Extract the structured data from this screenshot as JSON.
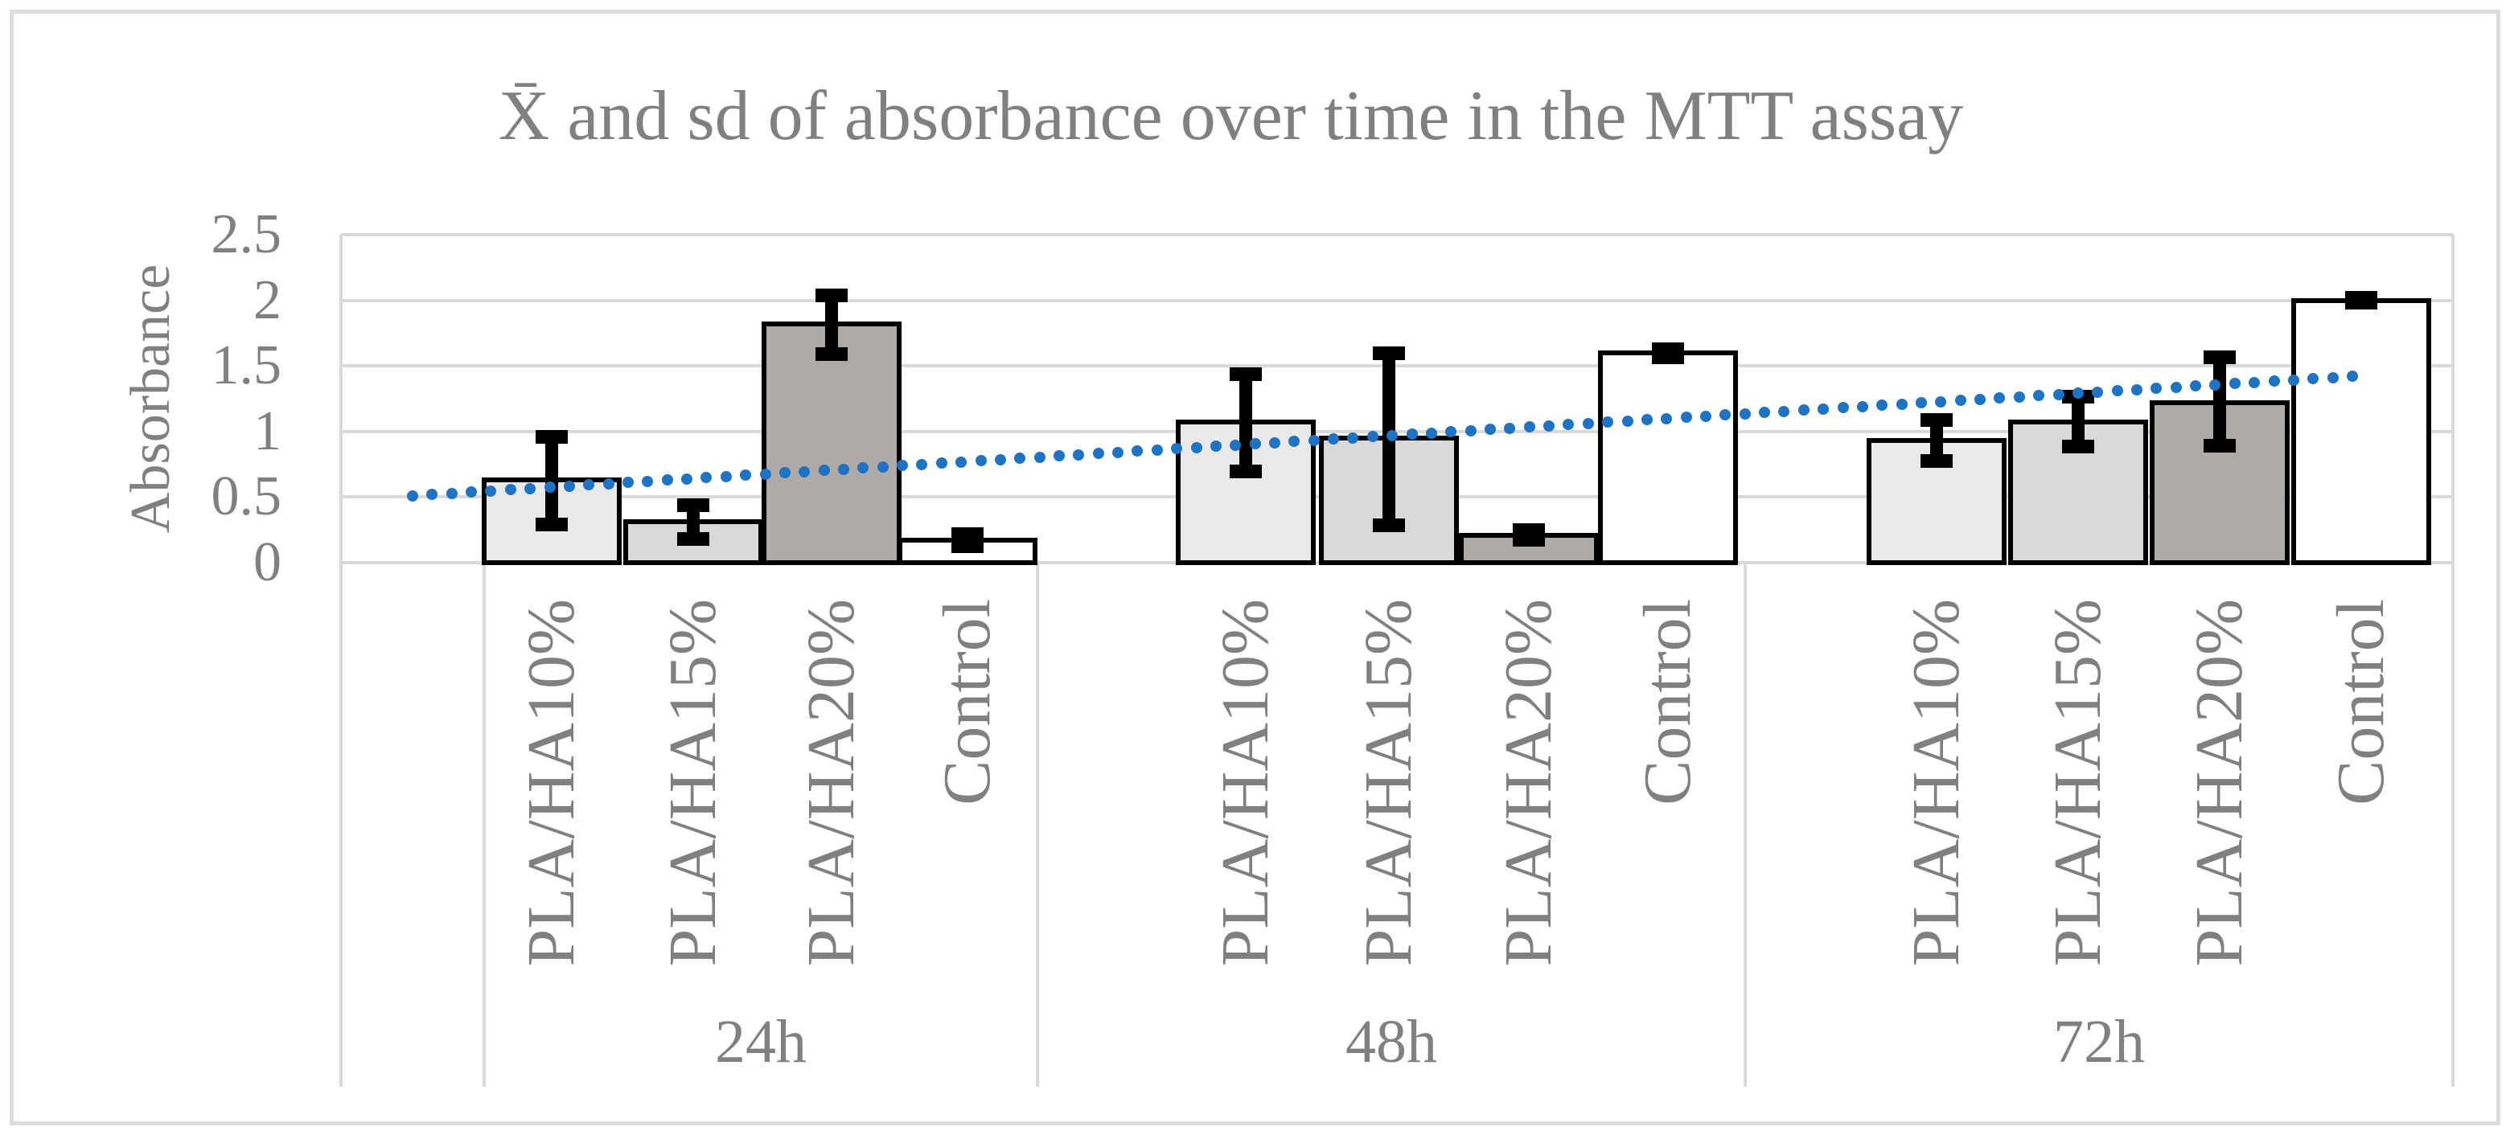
{
  "figure": {
    "background": "#ffffff",
    "border_color": "#dbdbdb"
  },
  "chart_data": {
    "type": "bar",
    "title": "X̄ and sd of absorbance over time in the MTT assay",
    "ylabel": "Absorbance",
    "xlabel": "",
    "ylim": [
      0,
      2.5
    ],
    "yticks": [
      0,
      0.5,
      1,
      1.5,
      2,
      2.5
    ],
    "ytick_labels": [
      "0",
      "0.5",
      "1",
      "1.5",
      "2",
      "2.5"
    ],
    "grid": true,
    "legend": "none",
    "text_color": "#808080",
    "gridline_color": "#d9d9d9",
    "bar_border_color": "#000000",
    "error_bar_color": "#000000",
    "categories": [
      "PLA/HA10%",
      "PLA/HA15%",
      "PLA/HA20%",
      "Control"
    ],
    "series_colors": {
      "PLA/HA10%": "#e9e9e9",
      "PLA/HA15%": "#d9d9d9",
      "PLA/HA20%": "#afaaa7",
      "Control": "#ffffff"
    },
    "groups": [
      {
        "label": "24h",
        "bars": [
          {
            "category": "PLA/HA10%",
            "value": 0.63,
            "err_low": 0.29,
            "err_high": 0.96
          },
          {
            "category": "PLA/HA15%",
            "value": 0.31,
            "err_low": 0.18,
            "err_high": 0.44
          },
          {
            "category": "PLA/HA20%",
            "value": 1.82,
            "err_low": 1.59,
            "err_high": 2.04
          },
          {
            "category": "Control",
            "value": 0.17,
            "err_low": 0.12,
            "err_high": 0.22
          }
        ]
      },
      {
        "label": "48h",
        "bars": [
          {
            "category": "PLA/HA10%",
            "value": 1.07,
            "err_low": 0.69,
            "err_high": 1.44
          },
          {
            "category": "PLA/HA15%",
            "value": 0.95,
            "err_low": 0.28,
            "err_high": 1.6
          },
          {
            "category": "PLA/HA20%",
            "value": 0.21,
            "err_low": 0.17,
            "err_high": 0.25
          },
          {
            "category": "Control",
            "value": 1.6,
            "err_low": 1.56,
            "err_high": 1.63
          }
        ]
      },
      {
        "label": "72h",
        "bars": [
          {
            "category": "PLA/HA10%",
            "value": 0.93,
            "err_low": 0.77,
            "err_high": 1.09
          },
          {
            "category": "PLA/HA15%",
            "value": 1.07,
            "err_low": 0.88,
            "err_high": 1.27
          },
          {
            "category": "PLA/HA20%",
            "value": 1.22,
            "err_low": 0.89,
            "err_high": 1.57
          },
          {
            "category": "Control",
            "value": 2.0,
            "err_low": 1.98,
            "err_high": 2.02
          }
        ]
      }
    ],
    "trendline": {
      "type": "linear",
      "style": "dotted",
      "color": "#1e73c4",
      "start_value": 0.51,
      "end_value": 1.42
    }
  }
}
